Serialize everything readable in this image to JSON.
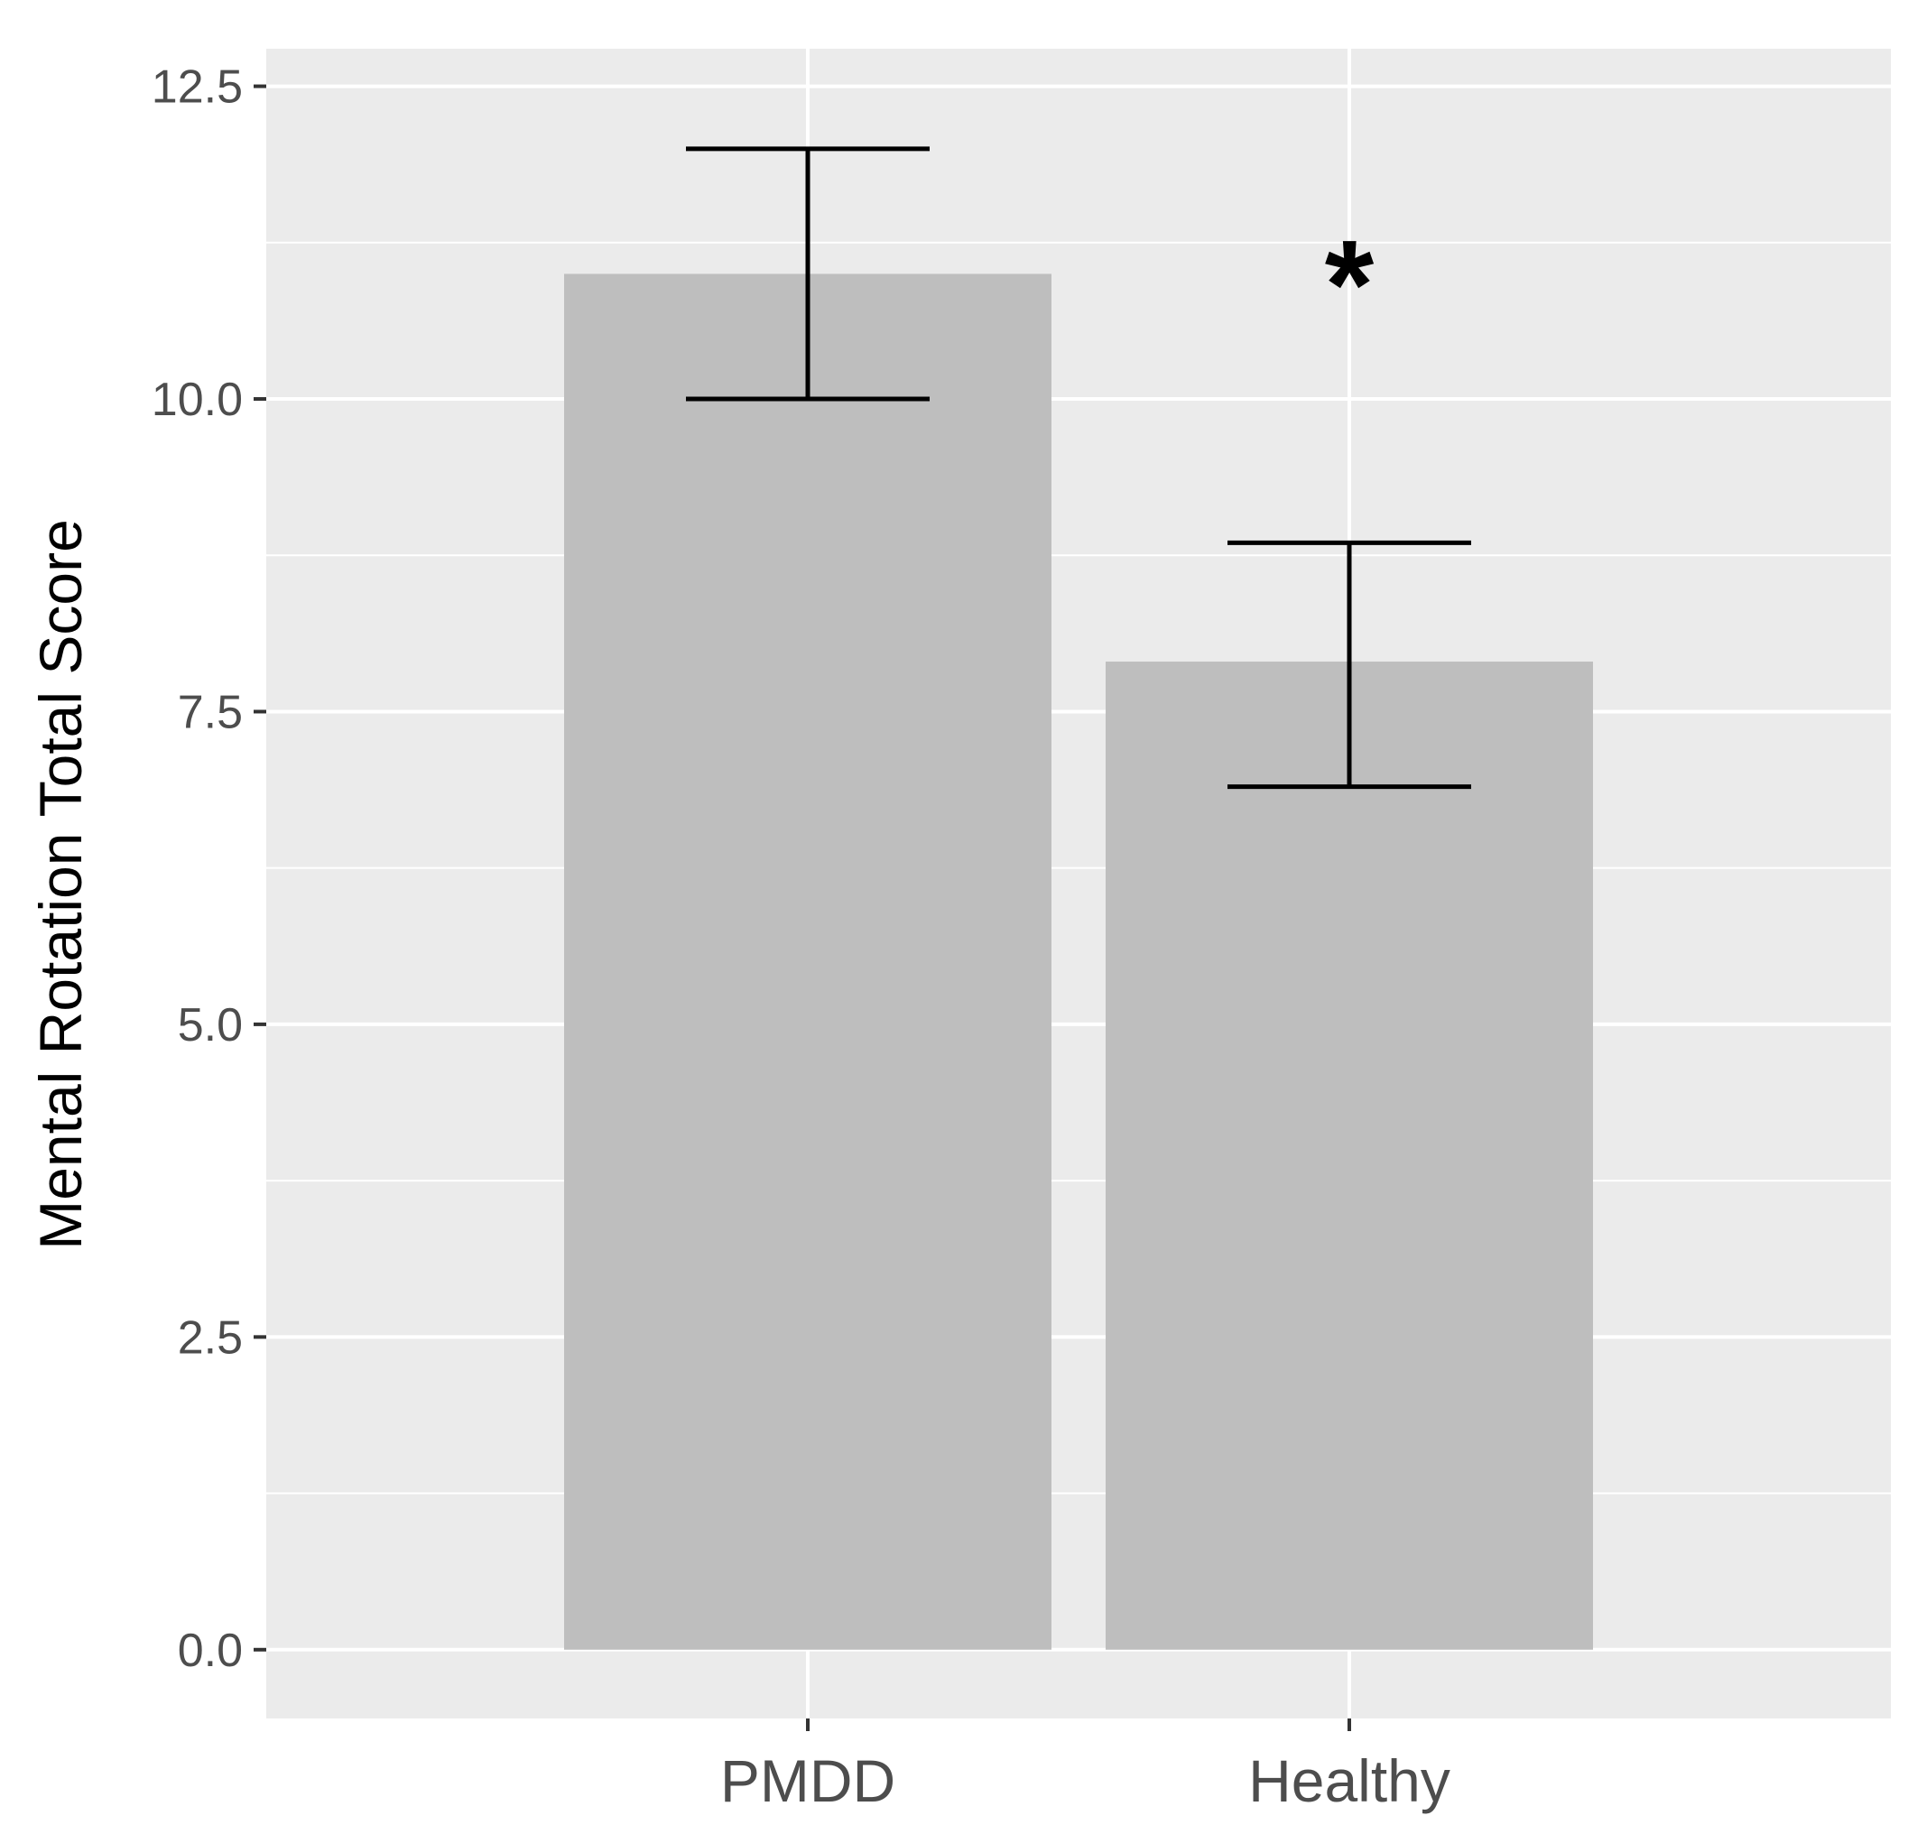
{
  "chart_data": {
    "type": "bar",
    "title": "",
    "xlabel": "",
    "ylabel": "Mental Rotation Total Score",
    "categories": [
      "PMDD",
      "Healthy"
    ],
    "values": [
      11.0,
      7.9
    ],
    "error_bars": [
      {
        "lower": 10.0,
        "upper": 12.0
      },
      {
        "lower": 6.9,
        "upper": 8.85
      }
    ],
    "ylim": [
      -0.55,
      12.8
    ],
    "yticks": [
      0.0,
      2.5,
      5.0,
      7.5,
      10.0,
      12.5
    ],
    "ytick_labels": [
      "0.0",
      "2.5",
      "5.0",
      "7.5",
      "10.0",
      "12.5"
    ],
    "grid": true,
    "annotations": [
      {
        "category": "Healthy",
        "text": "*",
        "y": 11.0
      }
    ],
    "colors": {
      "panel_background": "#ebebeb",
      "grid": "#ffffff",
      "bar": "#bebebe",
      "error_bar": "#000000"
    }
  }
}
